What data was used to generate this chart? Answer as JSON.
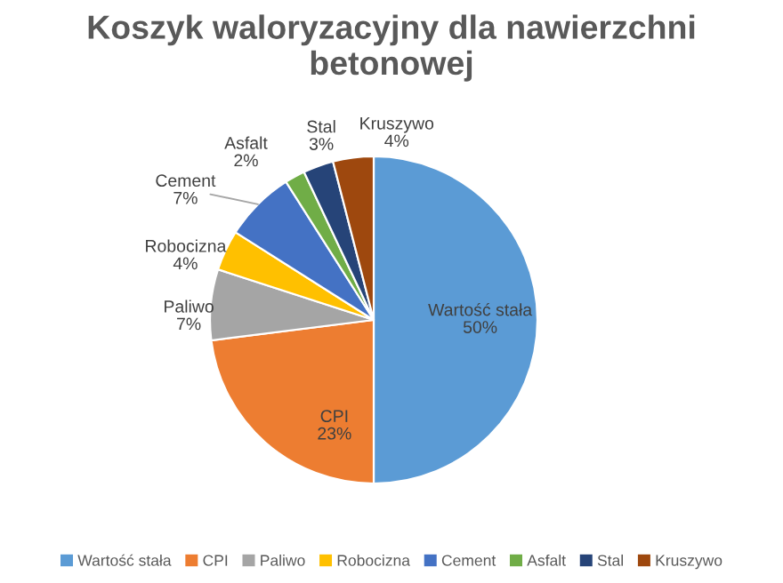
{
  "chart_data": {
    "type": "pie",
    "title": "Koszyk waloryzacyjny dla nawierzchni betonowej",
    "categories": [
      "Wartość stała",
      "CPI",
      "Paliwo",
      "Robocizna",
      "Cement",
      "Asfalt",
      "Stal",
      "Kruszywo"
    ],
    "values": [
      50,
      23,
      7,
      4,
      7,
      2,
      3,
      4
    ],
    "value_labels": [
      "50%",
      "23%",
      "7%",
      "4%",
      "7%",
      "2%",
      "3%",
      "4%"
    ],
    "colors": [
      "#5b9bd5",
      "#ed7d31",
      "#a5a5a5",
      "#ffc000",
      "#4472c4",
      "#70ad47",
      "#264478",
      "#9e480e"
    ],
    "legend": "bottom"
  }
}
